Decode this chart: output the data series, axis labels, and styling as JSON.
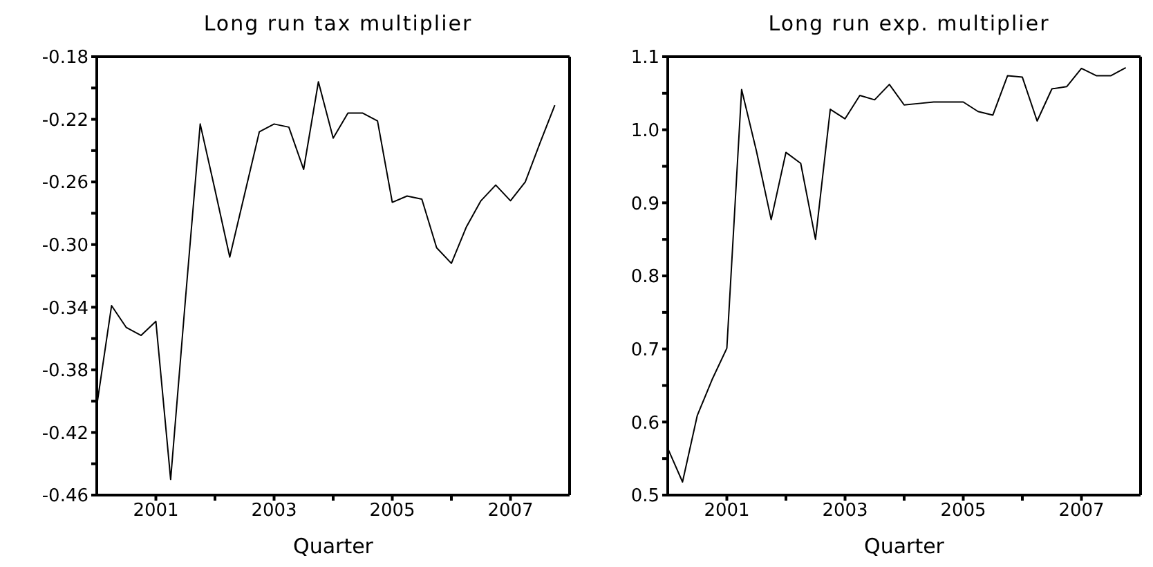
{
  "chart_data": [
    {
      "type": "line",
      "title": "Long run tax multiplier",
      "xlabel": "Quarter",
      "x": [
        2000,
        2000.25,
        2000.5,
        2000.75,
        2001,
        2001.25,
        2001.5,
        2001.75,
        2002,
        2002.25,
        2002.5,
        2002.75,
        2003,
        2003.25,
        2003.5,
        2003.75,
        2004,
        2004.25,
        2004.5,
        2004.75,
        2005,
        2005.25,
        2005.5,
        2005.75,
        2006,
        2006.25,
        2006.5,
        2006.75,
        2007,
        2007.25,
        2007.5,
        2007.75
      ],
      "series": [
        {
          "color": "#000000",
          "values": [
            -0.403,
            -0.339,
            -0.353,
            -0.358,
            -0.349,
            -0.45,
            -0.335,
            -0.223,
            -0.265,
            -0.308,
            -0.268,
            -0.228,
            -0.223,
            -0.225,
            -0.252,
            -0.196,
            -0.232,
            -0.216,
            -0.216,
            -0.221,
            -0.273,
            -0.269,
            -0.271,
            -0.302,
            -0.312,
            -0.289,
            -0.272,
            -0.262,
            -0.272,
            -0.26,
            -0.235,
            -0.211
          ]
        }
      ],
      "xlim": [
        2000,
        2008
      ],
      "xticks": [
        2001,
        {
          "value": 2002,
          "label": null
        },
        2003,
        {
          "value": 2004,
          "label": null
        },
        2005,
        {
          "value": 2006,
          "label": null
        },
        2007
      ],
      "ylim": [
        -0.46,
        -0.18
      ],
      "yticks": [
        {
          "value": -0.46,
          "label": "-0.46"
        },
        {
          "value": -0.44,
          "label": null
        },
        {
          "value": -0.42,
          "label": "-0.42"
        },
        {
          "value": -0.4,
          "label": null
        },
        {
          "value": -0.38,
          "label": "-0.38"
        },
        {
          "value": -0.36,
          "label": null
        },
        {
          "value": -0.34,
          "label": "-0.34"
        },
        {
          "value": -0.32,
          "label": null
        },
        {
          "value": -0.3,
          "label": "-0.30"
        },
        {
          "value": -0.28,
          "label": null
        },
        {
          "value": -0.26,
          "label": "-0.26"
        },
        {
          "value": -0.24,
          "label": null
        },
        {
          "value": -0.22,
          "label": "-0.22"
        },
        {
          "value": -0.2,
          "label": null
        },
        {
          "value": -0.18,
          "label": "-0.18"
        }
      ],
      "grid": false,
      "legend": false,
      "marker": "none",
      "line_style": "solid"
    },
    {
      "type": "line",
      "title": "Long run exp. multiplier",
      "xlabel": "Quarter",
      "x": [
        2000,
        2000.25,
        2000.5,
        2000.75,
        2001,
        2001.25,
        2001.5,
        2001.75,
        2002,
        2002.25,
        2002.5,
        2002.75,
        2003,
        2003.25,
        2003.5,
        2003.75,
        2004,
        2004.25,
        2004.5,
        2004.75,
        2005,
        2005.25,
        2005.5,
        2005.75,
        2006,
        2006.25,
        2006.5,
        2006.75,
        2007,
        2007.25,
        2007.5,
        2007.75
      ],
      "series": [
        {
          "color": "#000000",
          "values": [
            0.564,
            0.518,
            0.609,
            0.658,
            0.701,
            1.055,
            0.971,
            0.877,
            0.969,
            0.954,
            0.85,
            1.028,
            1.015,
            1.047,
            1.041,
            1.062,
            1.034,
            1.036,
            1.038,
            1.038,
            1.038,
            1.025,
            1.02,
            1.074,
            1.072,
            1.012,
            1.056,
            1.059,
            1.084,
            1.074,
            1.074,
            1.085
          ]
        }
      ],
      "xlim": [
        2000,
        2008
      ],
      "xticks": [
        2001,
        {
          "value": 2002,
          "label": null
        },
        2003,
        {
          "value": 2004,
          "label": null
        },
        2005,
        {
          "value": 2006,
          "label": null
        },
        2007
      ],
      "ylim": [
        0.5,
        1.1
      ],
      "yticks": [
        {
          "value": 0.5,
          "label": "0.5"
        },
        {
          "value": 0.55,
          "label": null
        },
        {
          "value": 0.6,
          "label": "0.6"
        },
        {
          "value": 0.65,
          "label": null
        },
        {
          "value": 0.7,
          "label": "0.7"
        },
        {
          "value": 0.75,
          "label": null
        },
        {
          "value": 0.8,
          "label": "0.8"
        },
        {
          "value": 0.85,
          "label": null
        },
        {
          "value": 0.9,
          "label": "0.9"
        },
        {
          "value": 0.95,
          "label": null
        },
        {
          "value": 1.0,
          "label": "1.0"
        },
        {
          "value": 1.05,
          "label": null
        },
        {
          "value": 1.1,
          "label": "1.1"
        }
      ],
      "grid": false,
      "legend": false,
      "marker": "none",
      "line_style": "solid"
    }
  ]
}
